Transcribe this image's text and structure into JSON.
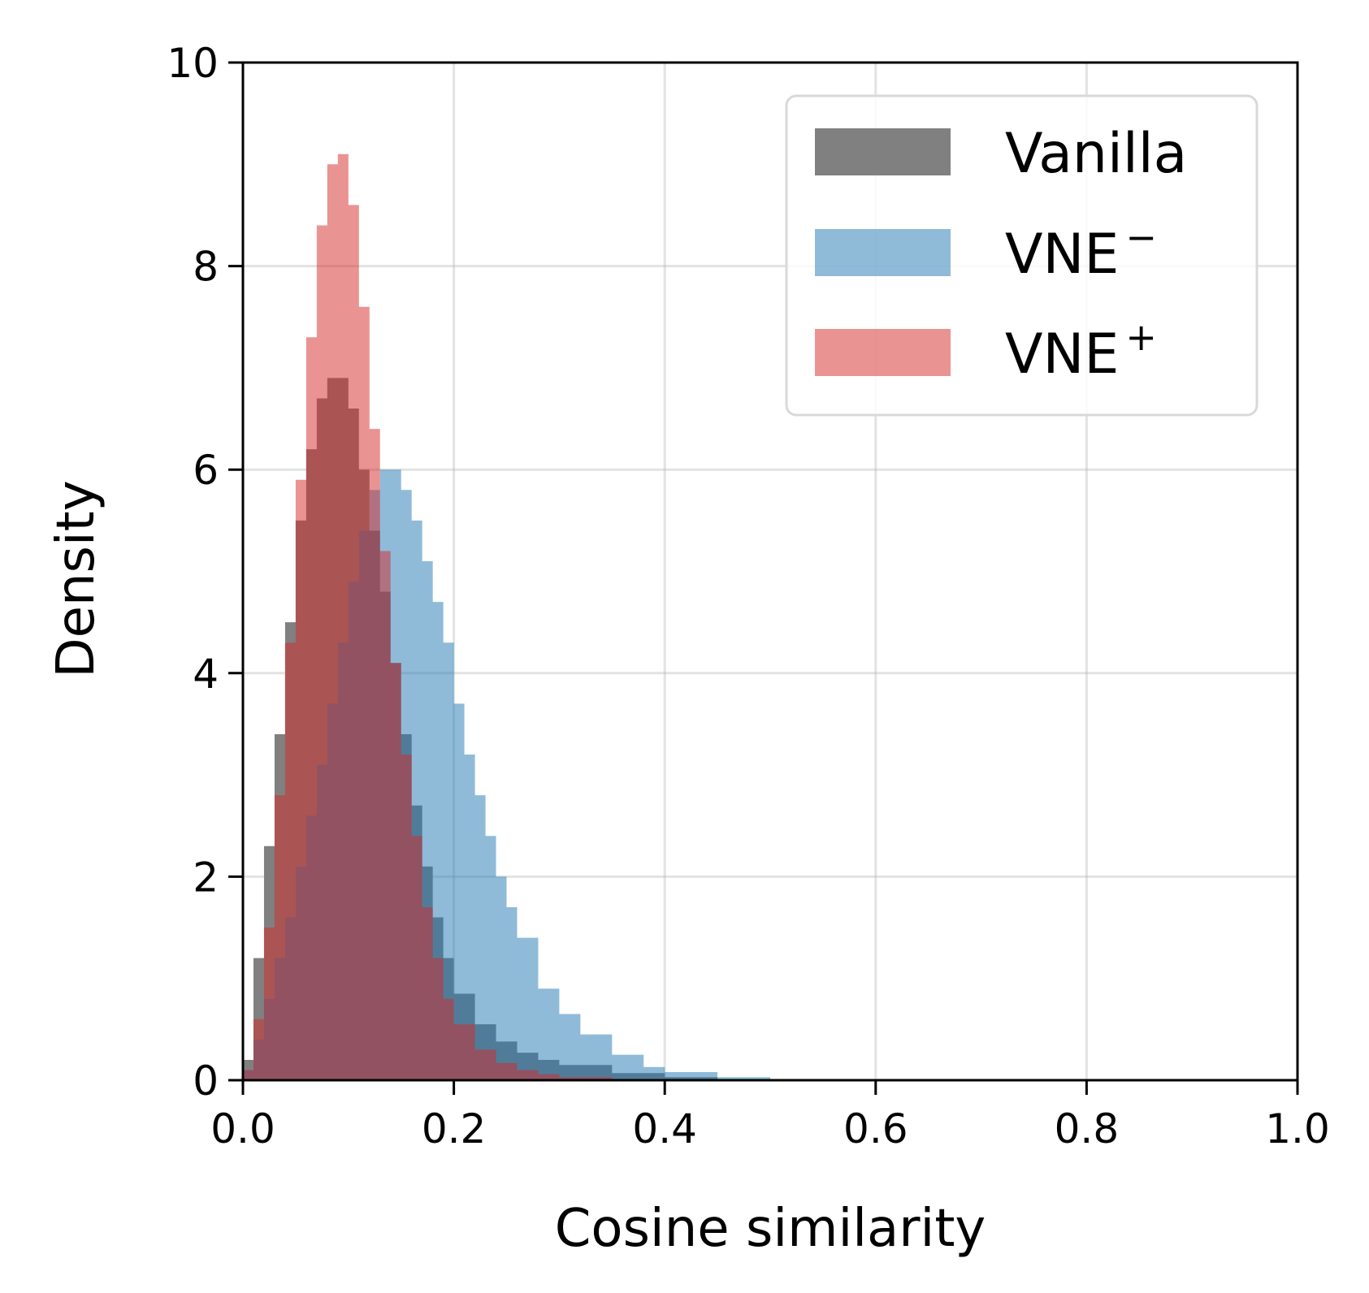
{
  "chart_data": {
    "type": "area",
    "xlabel": "Cosine similarity",
    "ylabel": "Density",
    "xlim": [
      0.0,
      1.0
    ],
    "ylim": [
      0,
      10
    ],
    "xticks": [
      "0.0",
      "0.2",
      "0.4",
      "0.6",
      "0.8",
      "1.0"
    ],
    "yticks": [
      "0",
      "2",
      "4",
      "6",
      "8",
      "10"
    ],
    "grid": true,
    "legend_position": "top-right",
    "series": [
      {
        "name": "Vanilla",
        "color": "#808080",
        "opacity": 1.0,
        "x": [
          0.0,
          0.01,
          0.02,
          0.03,
          0.04,
          0.05,
          0.06,
          0.07,
          0.08,
          0.09,
          0.1,
          0.11,
          0.12,
          0.13,
          0.14,
          0.15,
          0.16,
          0.17,
          0.18,
          0.19,
          0.2,
          0.22,
          0.24,
          0.26,
          0.28,
          0.3,
          0.35,
          0.4,
          0.45,
          0.5
        ],
        "values": [
          0.2,
          1.2,
          2.3,
          3.4,
          4.5,
          5.5,
          6.2,
          6.7,
          6.9,
          6.9,
          6.6,
          6.0,
          5.4,
          4.8,
          4.1,
          3.4,
          2.7,
          2.1,
          1.6,
          1.2,
          0.85,
          0.55,
          0.38,
          0.27,
          0.2,
          0.15,
          0.07,
          0.03,
          0.01,
          0.0
        ]
      },
      {
        "name": "VNE⁻",
        "color": "#1f77b4",
        "opacity": 0.5,
        "x": [
          0.0,
          0.01,
          0.02,
          0.03,
          0.04,
          0.05,
          0.06,
          0.07,
          0.08,
          0.09,
          0.1,
          0.11,
          0.12,
          0.13,
          0.14,
          0.15,
          0.16,
          0.17,
          0.18,
          0.19,
          0.2,
          0.21,
          0.22,
          0.23,
          0.24,
          0.25,
          0.26,
          0.28,
          0.3,
          0.32,
          0.35,
          0.38,
          0.4,
          0.45,
          0.5,
          0.55
        ],
        "values": [
          0.1,
          0.4,
          0.8,
          1.2,
          1.6,
          2.1,
          2.6,
          3.1,
          3.7,
          4.3,
          4.9,
          5.4,
          5.8,
          6.0,
          6.0,
          5.8,
          5.5,
          5.1,
          4.7,
          4.3,
          3.7,
          3.2,
          2.8,
          2.4,
          2.0,
          1.7,
          1.4,
          0.9,
          0.65,
          0.45,
          0.25,
          0.13,
          0.08,
          0.03,
          0.01,
          0.0
        ]
      },
      {
        "name": "VNE⁺",
        "color": "#d62728",
        "opacity": 0.5,
        "x": [
          0.0,
          0.01,
          0.02,
          0.03,
          0.04,
          0.05,
          0.06,
          0.07,
          0.08,
          0.09,
          0.1,
          0.11,
          0.12,
          0.13,
          0.14,
          0.15,
          0.16,
          0.17,
          0.18,
          0.19,
          0.2,
          0.22,
          0.24,
          0.26,
          0.28,
          0.3,
          0.35,
          0.4
        ],
        "values": [
          0.1,
          0.6,
          1.5,
          2.8,
          4.3,
          5.9,
          7.3,
          8.4,
          9.0,
          9.1,
          8.6,
          7.6,
          6.4,
          5.2,
          4.1,
          3.2,
          2.4,
          1.7,
          1.2,
          0.8,
          0.55,
          0.3,
          0.17,
          0.1,
          0.06,
          0.03,
          0.01,
          0.0
        ]
      }
    ],
    "legend": [
      {
        "label": "Vanilla",
        "sup": ""
      },
      {
        "label": "VNE",
        "sup": "−"
      },
      {
        "label": "VNE",
        "sup": "+"
      }
    ]
  }
}
